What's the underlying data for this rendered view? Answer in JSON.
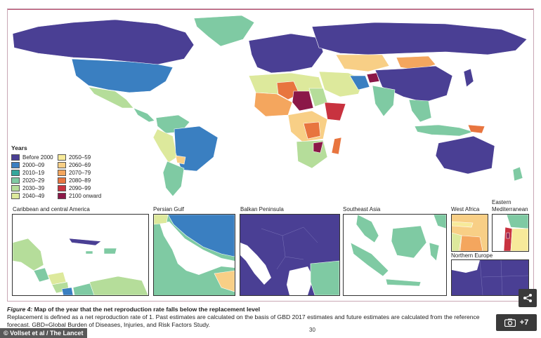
{
  "legend": {
    "title": "Years",
    "items": [
      {
        "label": "Before 2000",
        "color": "#4a3f94"
      },
      {
        "label": "2000–09",
        "color": "#3a7fc1"
      },
      {
        "label": "2010–19",
        "color": "#35a79c"
      },
      {
        "label": "2020–29",
        "color": "#7fcaa3"
      },
      {
        "label": "2030–39",
        "color": "#b5dd9a"
      },
      {
        "label": "2040–49",
        "color": "#dde99c"
      },
      {
        "label": "2050–59",
        "color": "#f7ea9a"
      },
      {
        "label": "2060–69",
        "color": "#f8cf86"
      },
      {
        "label": "2070–79",
        "color": "#f4a65e"
      },
      {
        "label": "2080–89",
        "color": "#e8753f"
      },
      {
        "label": "2090–99",
        "color": "#c8323f"
      },
      {
        "label": "2100 onward",
        "color": "#8b1848"
      }
    ]
  },
  "insets": {
    "caribbean": "Caribbean and central America",
    "persian_gulf": "Persian Gulf",
    "balkan": "Balkan Peninsula",
    "southeast_asia": "Southeast Asia",
    "west_africa": "West Africa",
    "eastern_med": "Eastern Mediterranean",
    "northern_europe": "Northern Europe"
  },
  "caption": {
    "figure_label": "Figure 4:",
    "figure_title": " Map of the year that the net reproduction rate falls below the replacement level",
    "body": "Replacement is defined as a net reproduction rate of 1. Past estimates are calculated on the basis of GBD 2017 estimates and future estimates are calculated from the reference forecast. GBD=Global Burden of Diseases, Injuries, and Risk Factors Study."
  },
  "page_number": "30",
  "credit": "© Vollset et al / The Lancet",
  "photo_count": "+7",
  "icons": {
    "share": "share-icon",
    "camera": "camera-icon"
  }
}
